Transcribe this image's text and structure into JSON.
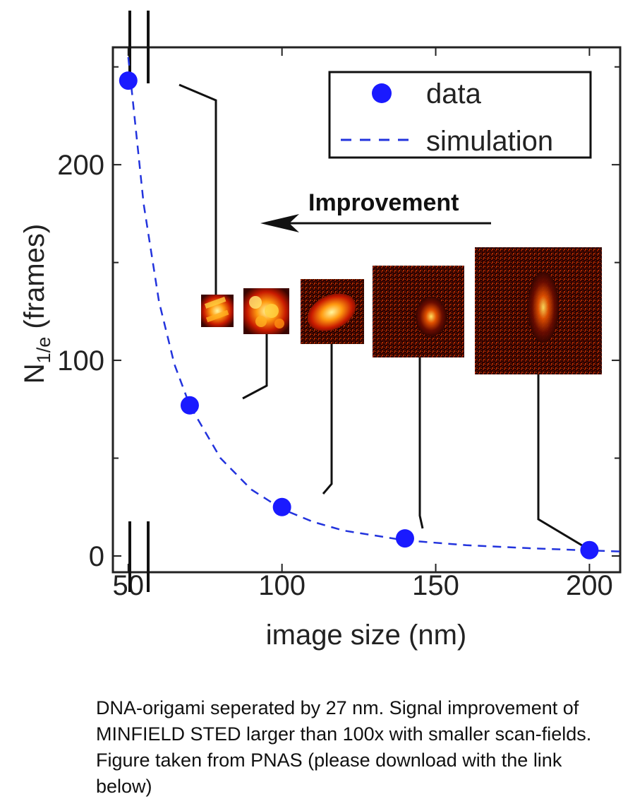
{
  "chart_data": {
    "type": "scatter",
    "xlabel": "image size (nm)",
    "ylabel": "N",
    "ylabel_subscript": "1/e",
    "ylabel_suffix": " (frames)",
    "xlim": [
      45,
      210
    ],
    "ylim": [
      0,
      260
    ],
    "x_ticks": [
      50,
      100,
      150,
      200
    ],
    "y_ticks": [
      0,
      100,
      200
    ],
    "axis_breaks": true,
    "grid": false,
    "legend_position": "top-right",
    "series": [
      {
        "name": "data",
        "kind": "points",
        "color": "#1a1aff",
        "x": [
          50,
          70,
          100,
          140,
          200
        ],
        "y": [
          243,
          77,
          25,
          9,
          3
        ]
      },
      {
        "name": "simulation",
        "kind": "dashed-line",
        "color": "#2233dd",
        "x": [
          50,
          55,
          60,
          65,
          70,
          80,
          90,
          100,
          110,
          120,
          140,
          160,
          180,
          200,
          210
        ],
        "y": [
          255,
          180,
          130,
          98,
          77,
          50,
          34,
          24,
          17.5,
          13,
          8,
          5.5,
          4,
          2.8,
          2.3
        ]
      }
    ],
    "annotations": [
      {
        "text": "Improvement",
        "arrow": "left"
      }
    ],
    "insets": [
      {
        "for_x": 70,
        "name": "inset-50nm"
      },
      {
        "for_x": 100,
        "name": "inset-70nm"
      },
      {
        "for_x": 140,
        "name": "inset-100nm"
      },
      {
        "for_x": 200,
        "name": "inset-140nm"
      },
      {
        "for_x": 200,
        "name": "inset-200nm"
      }
    ]
  },
  "caption": "DNA-origami seperated by 27 nm. Signal improvement of MINFIELD STED larger than 100x with smaller scan-fields. Figure taken from PNAS (please download with the link below)"
}
